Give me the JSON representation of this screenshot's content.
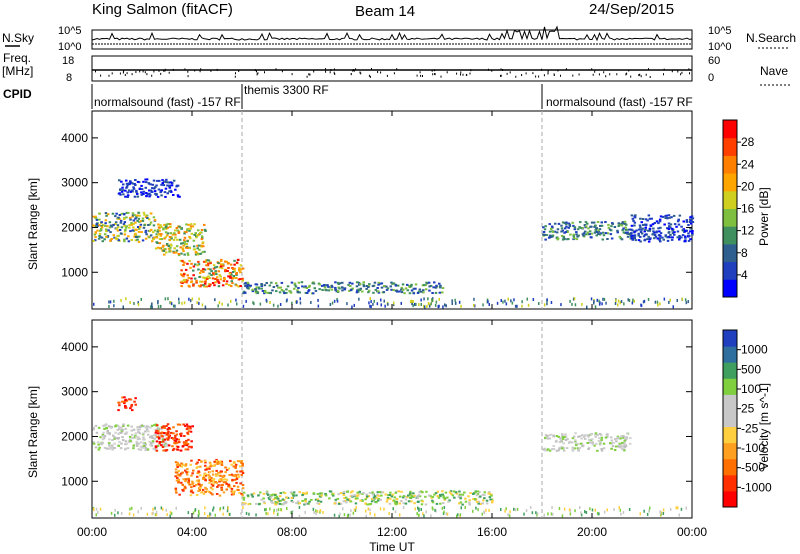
{
  "header": {
    "station": "King Salmon (fitACF)",
    "beam": "Beam 14",
    "date": "24/Sep/2015"
  },
  "aux_panels": {
    "nsky_label": "N.Sky",
    "nsearch_label": "N.Search",
    "nsky_ticks": [
      "10^5",
      "10^0"
    ],
    "nsearch_ticks": [
      "10^5",
      "10^0"
    ],
    "freq_label_1": "Freq.",
    "freq_label_2": "[MHz]",
    "freq_ticks": [
      "18",
      "8"
    ],
    "nave_label": "Nave",
    "nave_ticks": [
      "60",
      "0"
    ],
    "cpid_label": "CPID",
    "cpid_segments": [
      {
        "label": "normalsound (fast) -157 RF",
        "start_hour": 0,
        "end_hour": 6
      },
      {
        "label": "themis 3300 RF",
        "start_hour": 6,
        "end_hour": 18
      },
      {
        "label": "normalsound (fast) -157 RF",
        "start_hour": 18,
        "end_hour": 24
      }
    ]
  },
  "axes": {
    "x_label": "Time UT",
    "x_ticks": [
      "00:00",
      "04:00",
      "08:00",
      "12:00",
      "16:00",
      "20:00",
      "00:00"
    ],
    "y_label": "Slant Range [km]",
    "y_ticks": [
      "1000",
      "2000",
      "3000",
      "4000"
    ],
    "y_values": [
      1000,
      2000,
      3000,
      4000
    ],
    "ylim": [
      180,
      4600
    ],
    "xlim": [
      0,
      24
    ]
  },
  "power_colorbar": {
    "label": "Power [dB]",
    "ticks": [
      "4",
      "8",
      "12",
      "16",
      "20",
      "24",
      "28"
    ],
    "colors": [
      "#0000ff",
      "#1f3fbf",
      "#2f5f8f",
      "#3f8f5f",
      "#7fbf3f",
      "#cfcf1f",
      "#ffa500",
      "#ff7f00",
      "#ff3f00",
      "#ff0000"
    ]
  },
  "velocity_colorbar": {
    "label": "Velocity [m s^-1]",
    "ticks": [
      "1000",
      "500",
      "100",
      "25",
      "-25",
      "-100",
      "-500",
      "-1000"
    ],
    "colors": [
      "#1f3fbf",
      "#2f6f9f",
      "#3f9f5f",
      "#7fcf3f",
      "#c8c8c8",
      "#c8c8c8",
      "#ffcf3f",
      "#ff9f1f",
      "#ff6f00",
      "#ff2f00",
      "#ff0000"
    ]
  },
  "chart_data": [
    {
      "type": "heatmap",
      "title": "Power [dB]",
      "xlabel": "Time UT",
      "ylabel": "Slant Range [km]",
      "xlim": [
        0,
        24
      ],
      "ylim": [
        180,
        4600
      ],
      "patches": [
        {
          "t0": 0.0,
          "t1": 2.5,
          "r0": 1700,
          "r1": 2350,
          "level": "mixed-blue-green-yellow"
        },
        {
          "t0": 1.0,
          "t1": 3.5,
          "r0": 2700,
          "r1": 3100,
          "level": "blue"
        },
        {
          "t0": 2.5,
          "t1": 4.5,
          "r0": 1400,
          "r1": 2100,
          "level": "yellow-orange"
        },
        {
          "t0": 3.5,
          "t1": 6.0,
          "r0": 700,
          "r1": 1300,
          "level": "orange-red"
        },
        {
          "t0": 6.0,
          "t1": 14.0,
          "r0": 550,
          "r1": 800,
          "level": "blue-green"
        },
        {
          "t0": 18.0,
          "t1": 21.5,
          "r0": 1750,
          "r1": 2150,
          "level": "blue-green"
        },
        {
          "t0": 21.5,
          "t1": 24.0,
          "r0": 1700,
          "r1": 2300,
          "level": "blue"
        }
      ]
    },
    {
      "type": "heatmap",
      "title": "Velocity [m s^-1]",
      "xlabel": "Time UT",
      "ylabel": "Slant Range [km]",
      "xlim": [
        0,
        24
      ],
      "ylim": [
        180,
        4600
      ],
      "patches": [
        {
          "t0": 0.0,
          "t1": 3.0,
          "r0": 1700,
          "r1": 2300,
          "level": "grey"
        },
        {
          "t0": 1.0,
          "t1": 1.7,
          "r0": 2600,
          "r1": 2900,
          "level": "red"
        },
        {
          "t0": 2.5,
          "t1": 4.0,
          "r0": 1700,
          "r1": 2300,
          "level": "red"
        },
        {
          "t0": 3.3,
          "t1": 6.0,
          "r0": 700,
          "r1": 1500,
          "level": "orange"
        },
        {
          "t0": 6.0,
          "t1": 16.0,
          "r0": 500,
          "r1": 800,
          "level": "green"
        },
        {
          "t0": 18.0,
          "t1": 21.5,
          "r0": 1700,
          "r1": 2100,
          "level": "grey"
        }
      ]
    }
  ]
}
